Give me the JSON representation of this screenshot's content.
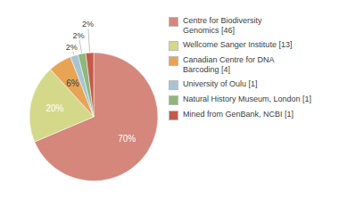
{
  "chart_data": {
    "type": "pie",
    "categories": [
      "Centre for Biodiversity\nGenomics [46]",
      "Wellcome Sanger Institute [13]",
      "Canadian Centre for DNA\nBarcoding [4]",
      "University of Oulu [1]",
      "Natural History Museum, London [1]",
      "Mined from GenBank, NCBI [1]"
    ],
    "values": [
      70,
      20,
      6,
      2,
      2,
      2
    ],
    "value_labels": [
      "70%",
      "20%",
      "6%",
      "2%",
      "2%",
      "2%"
    ],
    "colors": [
      "#d4877a",
      "#d4d98a",
      "#e8a455",
      "#a8c4d4",
      "#8db87a",
      "#c45a4a"
    ],
    "data_labels": true,
    "legend": "upper right"
  }
}
